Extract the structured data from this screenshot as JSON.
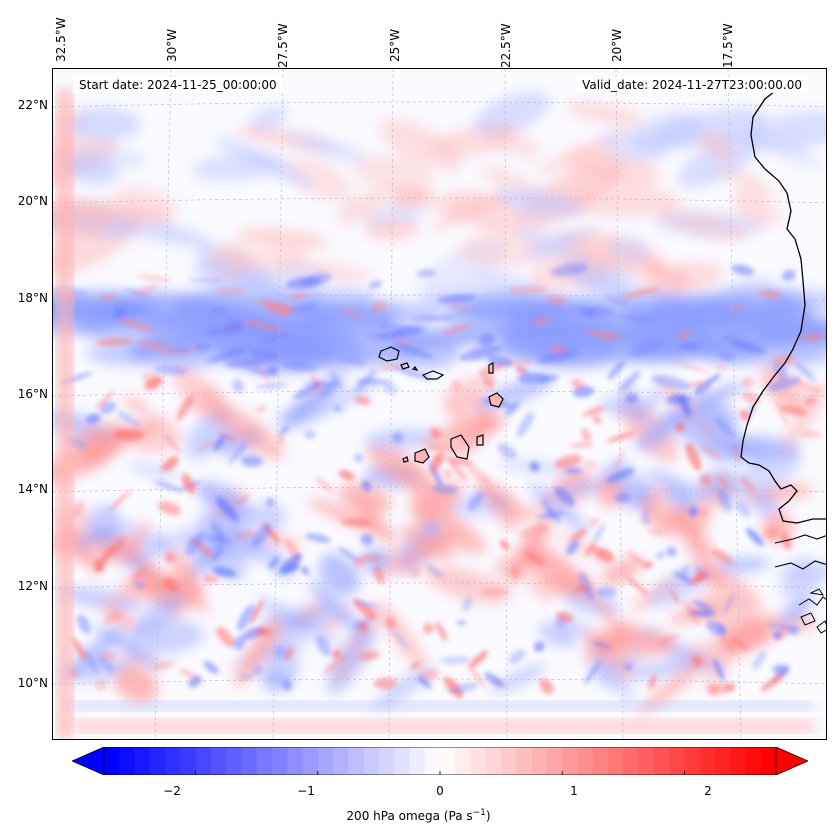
{
  "map": {
    "start_date": "Start date: 2024-11-25_00:00:00",
    "valid_date": "Valid_date: 2024-11-27T23:00:00.00",
    "lon_labels": [
      "32.5°W",
      "30°W",
      "27.5°W",
      "25°W",
      "22.5°W",
      "20°W",
      "17.5°W"
    ],
    "lat_labels": [
      "22°N",
      "20°N",
      "18°N",
      "16°N",
      "14°N",
      "12°N",
      "10°N"
    ],
    "colors": {
      "negative": "#0000ff",
      "neutral": "#ffffff",
      "positive": "#ff0000",
      "coast": "#000000"
    }
  },
  "colorbar": {
    "ticks": [
      "−2",
      "−1",
      "0",
      "1",
      "2"
    ],
    "min": -2.75,
    "max": 2.75,
    "label_prefix": "200 hPa omega (Pa s",
    "label_exp": "−1",
    "label_suffix": ")"
  }
}
